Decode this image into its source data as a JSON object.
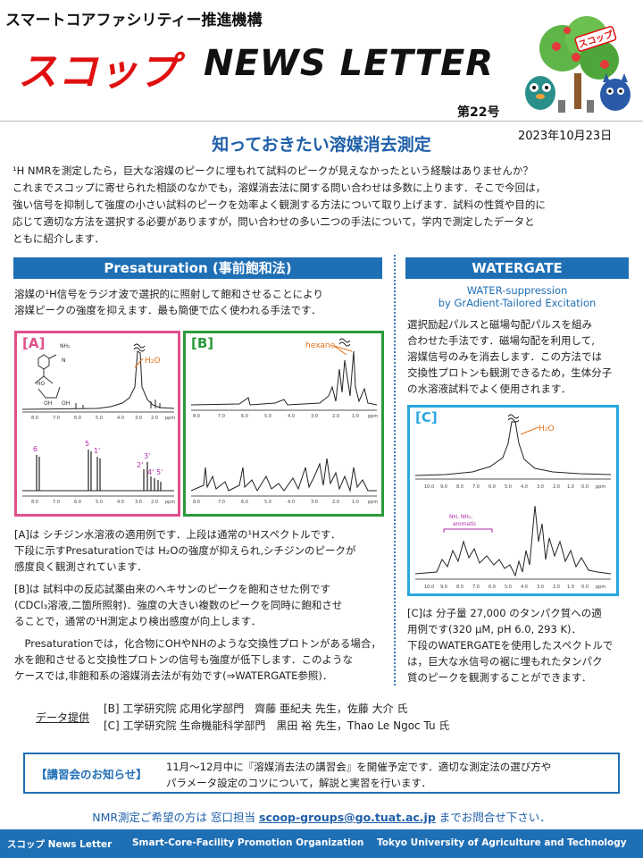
{
  "header": {
    "org": "スマートコアファシリティー推進機構",
    "logo_jp": "スコップ",
    "logo_en": "NEWS LETTER",
    "issue": "第22号",
    "date": "2023年10月23日",
    "mascot_sign": "スコップ"
  },
  "title": "知っておきたい溶媒消去測定",
  "intro": [
    "¹H NMRを測定したら，巨大な溶媒のピークに埋もれて試料のピークが見えなかったという経験はありませんか？",
    "これまでスコップに寄せられた相談のなかでも，溶媒消去法に関する問い合わせは多数に上ります．そこで今回は，",
    "強い信号を抑制して強度の小さい試料のピークを効率よく観測する方法について取り上げます．試料の性質や目的に",
    "応じて適切な方法を選択する必要がありますが，問い合わせの多い二つの手法について，学内で測定したデータと",
    "ともに紹介します．"
  ],
  "left": {
    "heading": "Presaturation (事前飽和法)",
    "desc": [
      "溶媒の¹H信号をラジオ波で選択的に照射して飽和させることにより",
      "溶媒ピークの強度を抑えます．最も簡便で広く使われる手法です．"
    ],
    "spec_a_label": "[A]",
    "spec_b_label": "[B]",
    "h2o": "H₂O",
    "hexane": "hexane",
    "peaks": [
      "6",
      "5",
      "1'",
      "3'",
      "2'",
      "4'",
      "5'"
    ],
    "ppm_a": [
      "8.0",
      "7.0",
      "6.0",
      "5.0",
      "4.0",
      "3.0",
      "2.0",
      "1.0",
      "ppm"
    ],
    "ppm_b": [
      "8.0",
      "7.0",
      "6.0",
      "5.0",
      "4.0",
      "3.0",
      "2.0",
      "1.0",
      "ppm"
    ],
    "para_a": [
      "[A]は シチジン水溶液の適用例です．上段は通常の¹Hスペクトルです．",
      "下段に示すPresaturationでは H₂Oの強度が抑えられ,シチジンのピークが",
      "感度良く観測されています．"
    ],
    "para_b": [
      "[B]は 試料中の反応試薬由来のヘキサンのピークを飽和させた例です",
      "(CDCl₃溶液,二箇所照射)．強度の大きい複数のピークを同時に飽和させ",
      "ることで，通常の¹H測定より検出感度が向上します．"
    ],
    "para_c": [
      "　Presaturationでは，化合物にOHやNHのような交換性プロトンがある場合，",
      "水を飽和させると交換性プロトンの信号も強度が低下します．このような",
      "ケースでは,非飽和系の溶媒消去法が有効です(⇒WATERGATE参照)．"
    ]
  },
  "right": {
    "heading": "WATERGATE",
    "subtitle1": "WATER-suppression",
    "subtitle2": "by GrAdient-Tailored Excitation",
    "desc": [
      "選択励起パルスと磁場勾配パルスを組み",
      "合わせた手法です．磁場勾配を利用して,",
      "溶媒信号のみを消去します．この方法では",
      "交換性プロトンも観測できるため，生体分子",
      "の水溶液試料でよく使用されます．"
    ],
    "spec_c_label": "[C]",
    "h2o": "H₂O",
    "nh_label1": "NH, NH₂,",
    "nh_label2": "aromatic",
    "ppm_c": [
      "10.0",
      "9.0",
      "8.0",
      "7.0",
      "6.0",
      "5.0",
      "4.0",
      "3.0",
      "2.0",
      "1.0",
      "0.0",
      "ppm"
    ],
    "para": [
      "[C]は 分子量 27,000 のタンパク質への適",
      "用例です(320 µM, pH 6.0, 293 K)．",
      "下段のWATERGATEを使用したスペクトルで",
      "は，巨大な水信号の裾に埋もれたタンパク",
      "質のピークを観測することができます．"
    ]
  },
  "credits": {
    "label": "データ提供",
    "line1": "[B] 工学研究院 応用化学部門　齊藤 亜紀夫 先生，佐藤 大介 氏",
    "line2": "[C] 工学研究院 生命機能科学部門　黒田 裕 先生，Thao Le Ngoc Tu 氏"
  },
  "notice": {
    "label": "【講習会のお知らせ】",
    "line1": "11月～12月中に『溶媒消去法の講習会』を開催予定です．適切な測定法の選び方や",
    "line2": "パラメータ設定のコツについて，解説と実習を行います．"
  },
  "contact": {
    "pre": "NMR測定ご希望の方は 窓口担当 ",
    "email": "scoop-groups@go.tuat.ac.jp",
    "post": " までお問合せ下さい．"
  },
  "footer": {
    "left": "スコップ News Letter",
    "mid": "Smart-Core-Facility Promotion Organization",
    "right": "Tokyo University of Agriculture and Technology"
  },
  "colors": {
    "accent": "#1f6fb5",
    "title": "#1f5fa8",
    "logo_red": "#e01010",
    "frame_a": "#e0508a",
    "frame_b": "#2a9a3a",
    "frame_c": "#29a7e0"
  }
}
